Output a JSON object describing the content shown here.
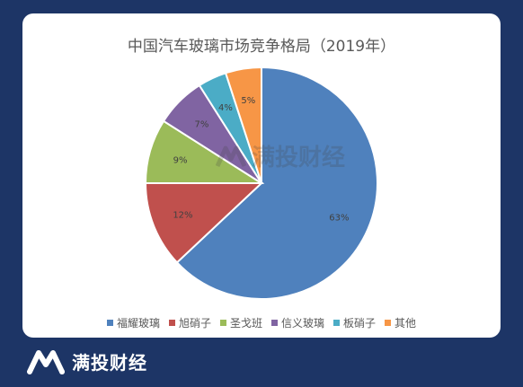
{
  "chart_data": {
    "type": "pie",
    "title": "中国汽车玻璃市场竞争格局（2019年）",
    "categories": [
      "福耀玻璃",
      "旭硝子",
      "圣戈班",
      "信义玻璃",
      "板硝子",
      "其他"
    ],
    "values": [
      63,
      12,
      9,
      7,
      4,
      5
    ],
    "data_labels": [
      "63%",
      "12%",
      "9%",
      "7%",
      "4%",
      "5%"
    ],
    "colors": [
      "#4f81bd",
      "#c0504d",
      "#9bbb59",
      "#8064a2",
      "#4bacc6",
      "#f79646"
    ],
    "legend_position": "bottom"
  },
  "watermark": {
    "text": "满投财经",
    "icon": "brand-logo-icon"
  },
  "brand": {
    "text": "满投财经",
    "icon": "brand-logo-icon"
  }
}
